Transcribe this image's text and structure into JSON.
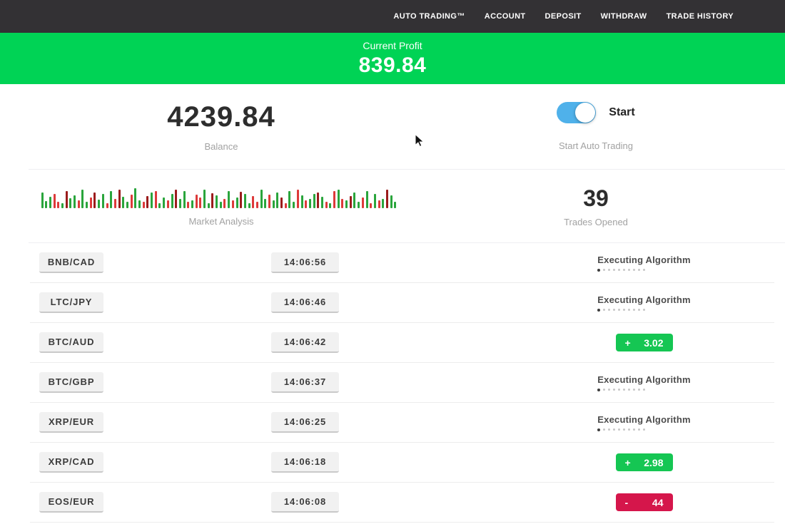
{
  "nav": {
    "bg": "#333134",
    "items": [
      {
        "label": "AUTO TRADING™"
      },
      {
        "label": "ACCOUNT"
      },
      {
        "label": "DEPOSIT"
      },
      {
        "label": "WITHDRAW"
      },
      {
        "label": "TRADE HISTORY"
      }
    ]
  },
  "profit_banner": {
    "label": "Current Profit",
    "value": "839.84"
  },
  "summary": {
    "balance_value": "4239.84",
    "balance_label": "Balance",
    "toggle_label": "Start",
    "toggle_caption": "Start Auto Trading",
    "toggle_state": "on",
    "market_label": "Market Analysis",
    "trades_opened_value": "39",
    "trades_opened_label": "Trades Opened"
  },
  "chart_data": {
    "type": "bar",
    "title": "Market Analysis",
    "palette": {
      "g": "#2aa53c",
      "r": "#dd3a3a",
      "d": "#9b1c1c"
    },
    "bars": "g22 g10 g16 r20 r9 g7 d24 g14 g18 r11 g26 g9 r15 d22 g12 g20 r7 g24 r13 d26 g16 g9 r19 g28 g11 r9 d17 g22 r24 g7 g15 r11 g20 d26 g13 g24 r9 g11 r19 r15 g26 g7 d21 g18 g9 r13 g24 r11 g15 d23 g20 g7 r17 r9 g26 g13 r19 g11 g22 d15 r7 g24 g9 r26 g18 r11 g13 g20 d22 g16 r9 g7 r24 g26 r13 g11 d17 g22 g9 r15 g24 r7 g20 r11 g13 d26 g18 g9"
  },
  "trades": {
    "executing_label": "Executing Algorithm",
    "executing_dots": 10,
    "rows": [
      {
        "pair": "BNB/CAD",
        "time": "14:06:56",
        "status": "executing"
      },
      {
        "pair": "LTC/JPY",
        "time": "14:06:46",
        "status": "executing"
      },
      {
        "pair": "BTC/AUD",
        "time": "14:06:42",
        "status": "profit",
        "sign": "+",
        "value": "3.02"
      },
      {
        "pair": "BTC/GBP",
        "time": "14:06:37",
        "status": "executing"
      },
      {
        "pair": "XRP/EUR",
        "time": "14:06:25",
        "status": "executing"
      },
      {
        "pair": "XRP/CAD",
        "time": "14:06:18",
        "status": "profit",
        "sign": "+",
        "value": "2.98"
      },
      {
        "pair": "EOS/EUR",
        "time": "14:06:08",
        "status": "loss",
        "sign": "-",
        "value": "44"
      }
    ]
  },
  "colors": {
    "nav_bg": "#333134",
    "banner_green": "#00d355",
    "profit_green": "#15c653",
    "loss_red": "#d5164b",
    "toggle_blue": "#4fb1ea"
  }
}
